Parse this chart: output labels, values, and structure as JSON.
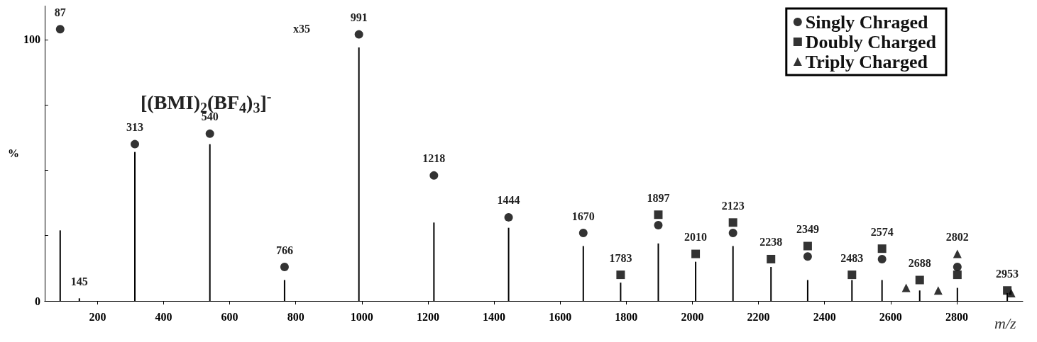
{
  "chart_data": {
    "type": "bar",
    "xlabel": "m/z",
    "ylabel": "%",
    "xlim": [
      40,
      3000
    ],
    "xticks": [
      200,
      400,
      600,
      800,
      1000,
      1200,
      1400,
      1600,
      1800,
      2000,
      2200,
      2400,
      2600,
      2800
    ],
    "ylim": [
      0,
      113
    ],
    "yticks": [
      0,
      {
        "value": 25,
        "label": null
      },
      {
        "value": 50,
        "label": null
      },
      {
        "value": 75,
        "label": null
      },
      100
    ],
    "grid": false,
    "legend": "top right",
    "annotations": [
      "x35",
      "[(BMI)$_{2}$(BF$_{4}$)$_{3}$]$^{-}$",
      {
        "text": "87",
        "x": 87,
        "y": 104
      },
      {
        "text": "145",
        "x": 145,
        "y": 1
      },
      {
        "text": "313",
        "x": 313,
        "y": 60
      },
      {
        "text": "540",
        "x": 540,
        "y": 64
      },
      {
        "text": "766",
        "x": 766,
        "y": 13
      },
      {
        "text": "991",
        "x": 991,
        "y": 102
      },
      {
        "text": "1218",
        "x": 1218,
        "y": 48
      },
      {
        "text": "1444",
        "x": 1444,
        "y": 32
      },
      {
        "text": "1670",
        "x": 1670,
        "y": 26
      },
      {
        "text": "1783",
        "x": 1783,
        "y": 10
      },
      {
        "text": "1897",
        "x": 1897,
        "y": 33
      },
      {
        "text": "2010",
        "x": 2010,
        "y": 18
      },
      {
        "text": "2123",
        "x": 2123,
        "y": 30
      },
      {
        "text": "2238",
        "x": 2238,
        "y": 16
      },
      {
        "text": "2349",
        "x": 2349,
        "y": 21
      },
      {
        "text": "2483",
        "x": 2483,
        "y": 10
      },
      {
        "text": "2574",
        "x": 2574,
        "y": 20
      },
      {
        "text": "2688",
        "x": 2688,
        "y": 8
      },
      {
        "text": "2802",
        "x": 2802,
        "y": 18
      },
      {
        "text": "2953",
        "x": 2953,
        "y": 4
      }
    ],
    "series": [
      {
        "color": "#000000",
        "x": [
          87,
          145,
          313,
          540,
          766,
          991,
          1218,
          1444,
          1670,
          1783,
          1897,
          2010,
          2123,
          2238,
          2349,
          2483,
          2574,
          2688,
          2802,
          2953
        ],
        "values": [
          27,
          1,
          57,
          60,
          8,
          97,
          30,
          28,
          21,
          7,
          22,
          15,
          21,
          13,
          8,
          8,
          8,
          4,
          5,
          3
        ]
      },
      {
        "type": "scatter",
        "name": "Singly Chraged",
        "marker": "circle",
        "color": "#000000",
        "x": [
          87,
          313,
          540,
          766,
          991,
          1218,
          1444,
          1670,
          1897,
          2123,
          2349,
          2574,
          2802
        ],
        "values": [
          104,
          60,
          64,
          13,
          102,
          48,
          32,
          26,
          29,
          26,
          17,
          16,
          13
        ]
      },
      {
        "type": "scatter",
        "name": "Doubly Charged",
        "marker": "square",
        "color": "#000000",
        "x": [
          1783,
          1897,
          2010,
          2123,
          2238,
          2349,
          2483,
          2574,
          2688,
          2802,
          2953
        ],
        "values": [
          10,
          33,
          18,
          30,
          16,
          21,
          10,
          20,
          8,
          10,
          4
        ]
      },
      {
        "type": "scatter",
        "name": "Triply Charged",
        "marker": "triangle",
        "color": "#000000",
        "x": [
          2647,
          2744,
          2802,
          2965
        ],
        "values": [
          5,
          4,
          18,
          3
        ]
      }
    ]
  }
}
